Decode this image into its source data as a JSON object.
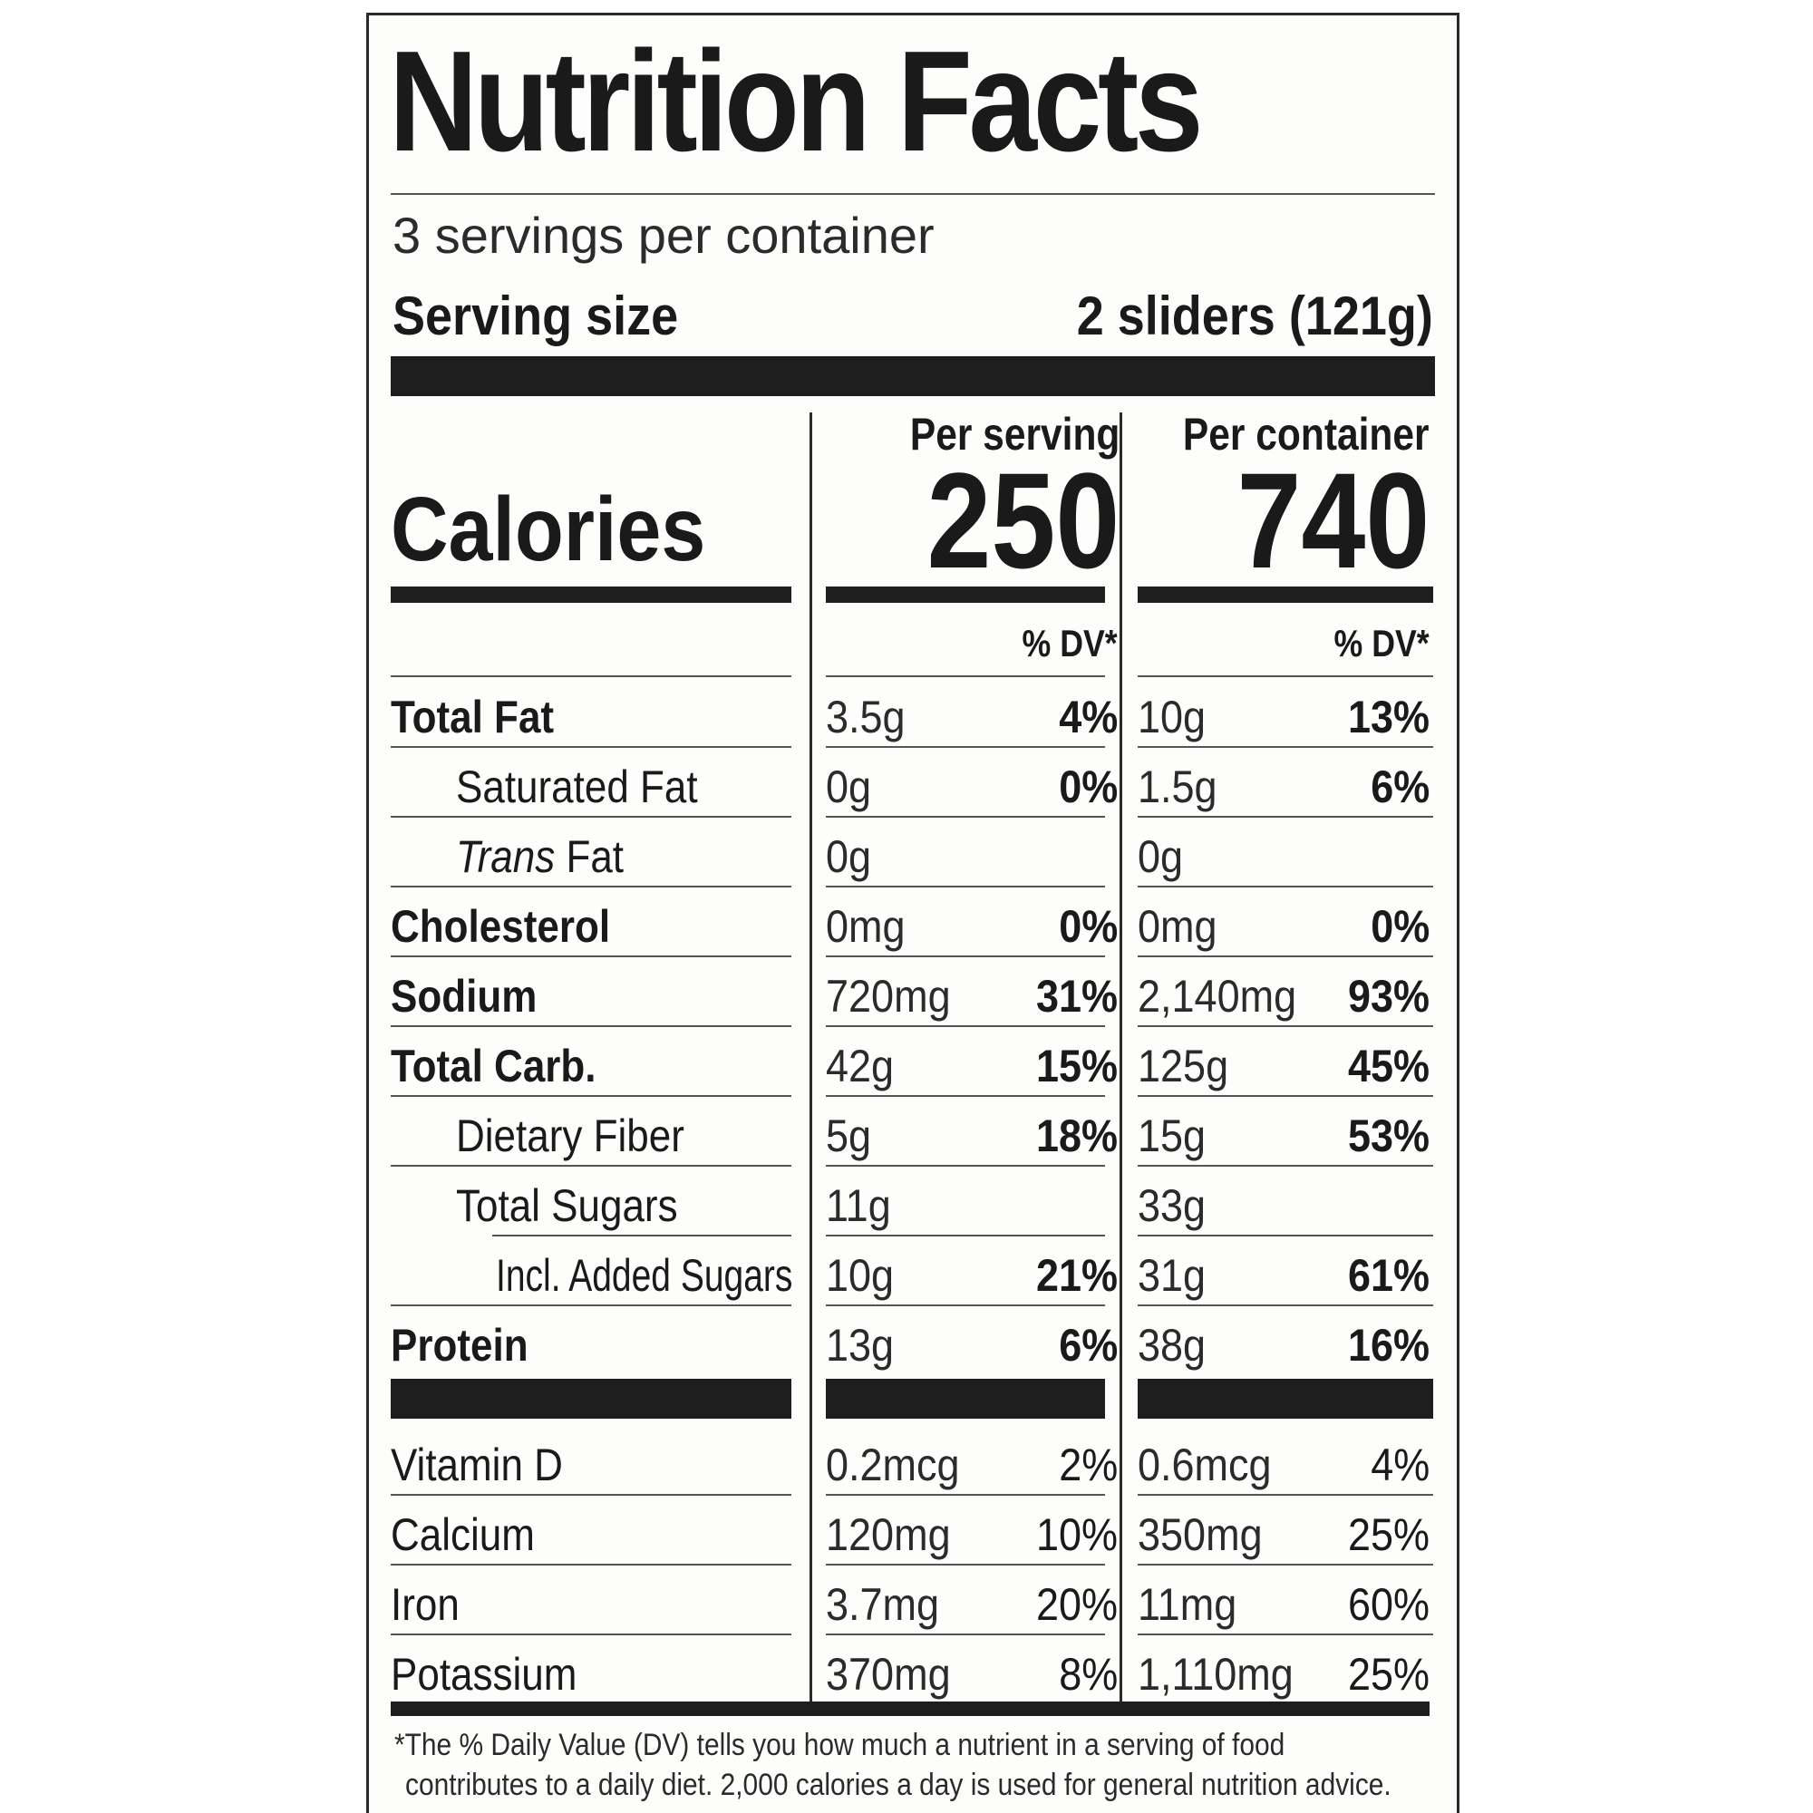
{
  "label": {
    "title": "Nutrition Facts",
    "servings_per_container": "3 servings per container",
    "serving_size_label": "Serving size",
    "serving_size_value": "2 sliders (121g)",
    "calories_label": "Calories",
    "per_serving_header": "Per serving",
    "per_container_header": "Per container",
    "calories_per_serving": "250",
    "calories_per_container": "740",
    "dv_header": "% DV*",
    "nutrients": [
      {
        "name": "Total Fat",
        "bold": true,
        "s_amt": "3.5g",
        "s_pct": "4%",
        "c_amt": "10g",
        "c_pct": "13%"
      },
      {
        "name": "Saturated Fat",
        "bold": false,
        "s_amt": "0g",
        "s_pct": "0%",
        "c_amt": "1.5g",
        "c_pct": "6%"
      },
      {
        "name_italic": "Trans",
        "name": " Fat",
        "bold": false,
        "s_amt": "0g",
        "s_pct": "",
        "c_amt": "0g",
        "c_pct": ""
      },
      {
        "name": "Cholesterol",
        "bold": true,
        "s_amt": "0mg",
        "s_pct": "0%",
        "c_amt": "0mg",
        "c_pct": "0%"
      },
      {
        "name": "Sodium",
        "bold": true,
        "s_amt": "720mg",
        "s_pct": "31%",
        "c_amt": "2,140mg",
        "c_pct": "93%"
      },
      {
        "name": "Total Carb.",
        "bold": true,
        "s_amt": "42g",
        "s_pct": "15%",
        "c_amt": "125g",
        "c_pct": "45%"
      },
      {
        "name": "Dietary Fiber",
        "bold": false,
        "s_amt": "5g",
        "s_pct": "18%",
        "c_amt": "15g",
        "c_pct": "53%"
      },
      {
        "name": "Total Sugars",
        "bold": false,
        "s_amt": "11g",
        "s_pct": "",
        "c_amt": "33g",
        "c_pct": ""
      },
      {
        "name": "Incl. Added Sugars",
        "bold": false,
        "s_amt": "10g",
        "s_pct": "21%",
        "c_amt": "31g",
        "c_pct": "61%"
      },
      {
        "name": "Protein",
        "bold": true,
        "s_amt": "13g",
        "s_pct": "6%",
        "c_amt": "38g",
        "c_pct": "16%"
      }
    ],
    "vitamins": [
      {
        "name": "Vitamin D",
        "s_amt": "0.2mcg",
        "s_pct": "2%",
        "c_amt": "0.6mcg",
        "c_pct": "4%"
      },
      {
        "name": "Calcium",
        "s_amt": "120mg",
        "s_pct": "10%",
        "c_amt": "350mg",
        "c_pct": "25%"
      },
      {
        "name": "Iron",
        "s_amt": "3.7mg",
        "s_pct": "20%",
        "c_amt": "11mg",
        "c_pct": "60%"
      },
      {
        "name": "Potassium",
        "s_amt": "370mg",
        "s_pct": "8%",
        "c_amt": "1,110mg",
        "c_pct": "25%"
      }
    ],
    "footnote_line1": "*The % Daily Value (DV) tells you how much a nutrient in a serving of food",
    "footnote_line2": "contributes to a daily diet. 2,000 calories a day is used for general nutrition advice."
  }
}
